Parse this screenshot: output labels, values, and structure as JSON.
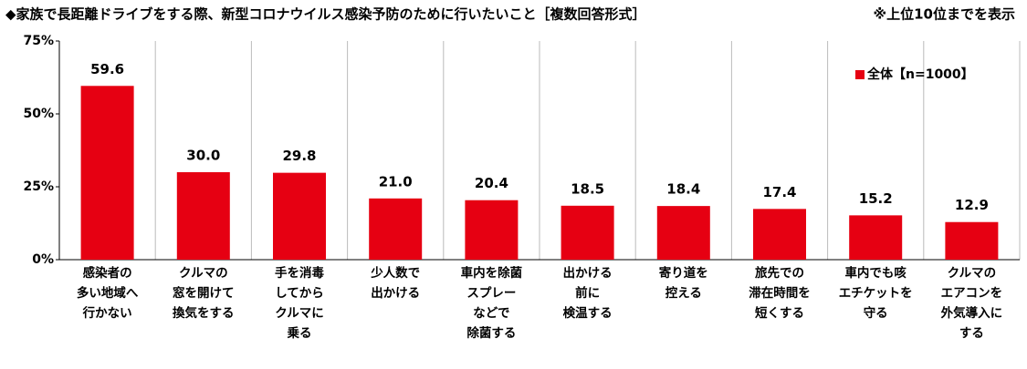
{
  "chart_data": {
    "type": "bar",
    "title": "◆家族で長距離ドライブをする際、新型コロナウイルス感染予防のために行いたいこと［複数回答形式］",
    "note": "※上位10位までを表示",
    "categories": [
      "感染者の\n多い地域へ\n行かない",
      "クルマの\n窓を開けて\n換気をする",
      "手を消毒\nしてから\nクルマに\n乗る",
      "少人数で\n出かける",
      "車内を除菌\nスプレー\nなどで\n除菌する",
      "出かける\n前に\n検温する",
      "寄り道を\n控える",
      "旅先での\n滞在時間を\n短くする",
      "車内でも咳\nエチケットを\n守る",
      "クルマの\nエアコンを\n外気導入に\nする"
    ],
    "series": [
      {
        "name": "全体【n=1000】",
        "color": "#e60012",
        "values": [
          59.6,
          30.0,
          29.8,
          21.0,
          20.4,
          18.5,
          18.4,
          17.4,
          15.2,
          12.9
        ],
        "value_labels": [
          "59.6",
          "30.0",
          "29.8",
          "21.0",
          "20.4",
          "18.5",
          "18.4",
          "17.4",
          "15.2",
          "12.9"
        ]
      }
    ],
    "ylim": [
      0,
      75
    ],
    "yticks": [
      {
        "value": 0,
        "label": "0%"
      },
      {
        "value": 25,
        "label": "25%"
      },
      {
        "value": 50,
        "label": "50%"
      },
      {
        "value": 75,
        "label": "75%"
      }
    ],
    "grid": false,
    "legend": "top-right"
  }
}
